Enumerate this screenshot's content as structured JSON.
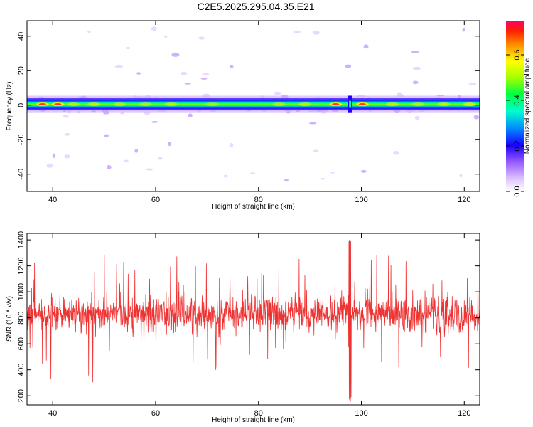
{
  "title": "C2E5.2025.295.04.35.E21",
  "chart_data": [
    {
      "type": "heatmap",
      "xlabel": "Height of straight line (km)",
      "ylabel": "Frequency (Hz)",
      "xlim": [
        35,
        123
      ],
      "ylim": [
        -50,
        49
      ],
      "xticks": [
        40,
        60,
        80,
        100,
        120
      ],
      "yticks": [
        -40,
        -20,
        0,
        20,
        40
      ],
      "band_center_hz": 0.5,
      "band_halfwidth_hz": 2.5,
      "disturbance_km": 97.8,
      "colorbar": {
        "label": "Normalized spectral amplitude",
        "range": [
          0.0,
          0.75
        ],
        "ticks": [
          0.0,
          0.2,
          0.4,
          0.6
        ]
      }
    },
    {
      "type": "line",
      "xlabel": "Height of straight line (km)",
      "ylabel": "SNR (10 * v/v)",
      "xlim": [
        35,
        123
      ],
      "ylim": [
        130,
        1450
      ],
      "xticks": [
        40,
        60,
        80,
        100,
        120
      ],
      "yticks": [
        200,
        400,
        600,
        800,
        1000,
        1200,
        1400
      ],
      "series_color": "#ee3333",
      "typical_range": [
        600,
        1100
      ],
      "mean": 830,
      "spike_km": 97.8,
      "spike_max": 1440,
      "spike_min": 140
    }
  ]
}
